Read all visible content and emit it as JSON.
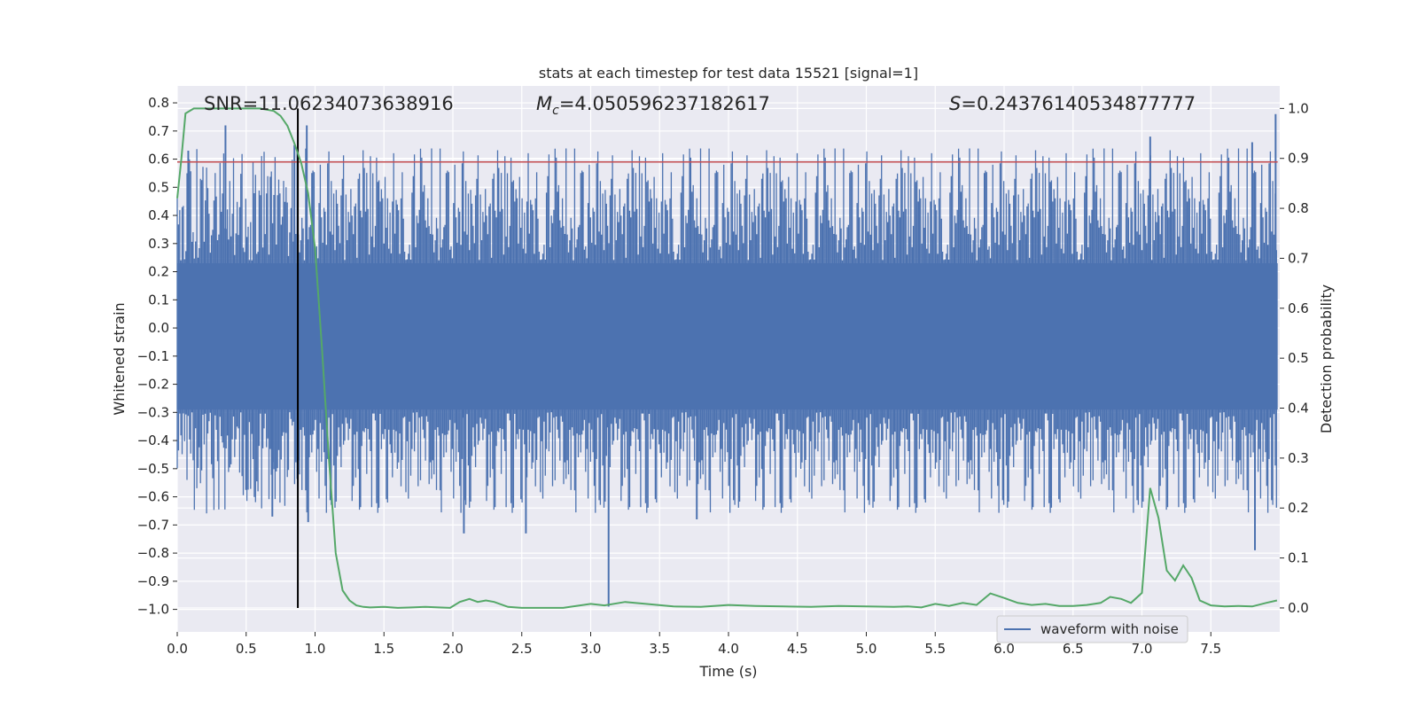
{
  "chart_data": {
    "type": "line",
    "title": "stats at each timestep for test data 15521 [signal=1]",
    "xlabel": "Time (s)",
    "ylabel": "Whitened strain",
    "ylabel_right": "Detection probability",
    "xlim": [
      0.0,
      8.0
    ],
    "ylim": [
      -1.08,
      0.86
    ],
    "ylim_right": [
      -0.048,
      1.045
    ],
    "x_ticks": [
      "0.0",
      "0.5",
      "1.0",
      "1.5",
      "2.0",
      "2.5",
      "3.0",
      "3.5",
      "4.0",
      "4.5",
      "5.0",
      "5.5",
      "6.0",
      "6.5",
      "7.0",
      "7.5"
    ],
    "x_tick_values": [
      0,
      0.5,
      1,
      1.5,
      2,
      2.5,
      3,
      3.5,
      4,
      4.5,
      5,
      5.5,
      6,
      6.5,
      7,
      7.5
    ],
    "y_ticks": [
      "0.8",
      "0.7",
      "0.6",
      "0.5",
      "0.4",
      "0.3",
      "0.2",
      "0.1",
      "0.0",
      "−0.1",
      "−0.2",
      "−0.3",
      "−0.4",
      "−0.5",
      "−0.6",
      "−0.7",
      "−0.8",
      "−0.9",
      "−1.0"
    ],
    "y_tick_values": [
      0.8,
      0.7,
      0.6,
      0.5,
      0.4,
      0.3,
      0.2,
      0.1,
      0.0,
      -0.1,
      -0.2,
      -0.3,
      -0.4,
      -0.5,
      -0.6,
      -0.7,
      -0.8,
      -0.9,
      -1.0
    ],
    "y_ticks_right": [
      "1.0",
      "0.9",
      "0.8",
      "0.7",
      "0.6",
      "0.5",
      "0.4",
      "0.3",
      "0.2",
      "0.1",
      "0.0"
    ],
    "y_tick_values_right": [
      1.0,
      0.9,
      0.8,
      0.7,
      0.6,
      0.5,
      0.4,
      0.3,
      0.2,
      0.1,
      0.0
    ],
    "annotations": {
      "snr": "SNR=11.06234073638916",
      "mc": "=4.050596237182617",
      "s": "=0.24376140534877777"
    },
    "legend": {
      "label": "waveform with noise",
      "placement": "lower-right"
    },
    "threshold_line": {
      "y": 0.59,
      "color": "#c44e52"
    },
    "marker_line": {
      "x": 0.875,
      "color": "#000000"
    },
    "waveform": {
      "name": "waveform with noise",
      "color": "#4c72b0",
      "band_upper": 0.23,
      "band_lower": -0.29,
      "spike_count": 900,
      "spike_upper_range": [
        0.24,
        0.64
      ],
      "spike_lower_range": [
        -0.3,
        -0.66
      ],
      "outliers": [
        {
          "x": 0.35,
          "y": 0.72
        },
        {
          "x": 0.85,
          "y": 0.65
        },
        {
          "x": 0.94,
          "y": 0.72
        },
        {
          "x": 0.08,
          "y": 0.63
        },
        {
          "x": 0.69,
          "y": -0.67
        },
        {
          "x": 0.95,
          "y": -0.69
        },
        {
          "x": 2.08,
          "y": -0.73
        },
        {
          "x": 2.53,
          "y": -0.73
        },
        {
          "x": 3.13,
          "y": -0.99
        },
        {
          "x": 3.77,
          "y": -0.68
        },
        {
          "x": 7.82,
          "y": -0.79
        },
        {
          "x": 7.97,
          "y": 0.76
        },
        {
          "x": 7.06,
          "y": 0.68
        },
        {
          "x": 7.8,
          "y": 0.66
        }
      ]
    },
    "detection_probability": {
      "name": "Detection probability",
      "color": "#55a868",
      "x": [
        0.0,
        0.03,
        0.06,
        0.12,
        0.2,
        0.3,
        0.45,
        0.6,
        0.7,
        0.75,
        0.8,
        0.85,
        0.9,
        0.95,
        1.0,
        1.05,
        1.1,
        1.15,
        1.2,
        1.25,
        1.3,
        1.35,
        1.4,
        1.5,
        1.6,
        1.7,
        1.8,
        1.9,
        1.98,
        2.05,
        2.12,
        2.18,
        2.24,
        2.3,
        2.4,
        2.5,
        2.6,
        2.8,
        3.0,
        3.1,
        3.25,
        3.4,
        3.6,
        3.8,
        4.0,
        4.2,
        4.4,
        4.6,
        4.8,
        5.0,
        5.2,
        5.3,
        5.4,
        5.5,
        5.6,
        5.7,
        5.8,
        5.9,
        6.0,
        6.1,
        6.2,
        6.3,
        6.4,
        6.5,
        6.6,
        6.7,
        6.77,
        6.85,
        6.92,
        7.0,
        7.06,
        7.12,
        7.18,
        7.24,
        7.3,
        7.36,
        7.42,
        7.5,
        7.6,
        7.7,
        7.8,
        7.9,
        7.98
      ],
      "y": [
        0.82,
        0.9,
        0.99,
        1.0,
        1.0,
        1.0,
        1.0,
        1.0,
        0.995,
        0.985,
        0.965,
        0.93,
        0.89,
        0.83,
        0.72,
        0.52,
        0.3,
        0.11,
        0.035,
        0.015,
        0.005,
        0.002,
        0.001,
        0.002,
        0.0,
        0.001,
        0.002,
        0.001,
        0.0,
        0.012,
        0.018,
        0.012,
        0.015,
        0.012,
        0.002,
        0.0,
        0.0,
        0.0,
        0.008,
        0.005,
        0.012,
        0.008,
        0.003,
        0.002,
        0.006,
        0.004,
        0.003,
        0.002,
        0.004,
        0.003,
        0.002,
        0.003,
        0.001,
        0.008,
        0.004,
        0.01,
        0.006,
        0.029,
        0.02,
        0.01,
        0.006,
        0.008,
        0.004,
        0.004,
        0.006,
        0.01,
        0.022,
        0.018,
        0.01,
        0.03,
        0.24,
        0.18,
        0.075,
        0.055,
        0.085,
        0.06,
        0.015,
        0.005,
        0.003,
        0.004,
        0.003,
        0.01,
        0.015
      ]
    }
  }
}
